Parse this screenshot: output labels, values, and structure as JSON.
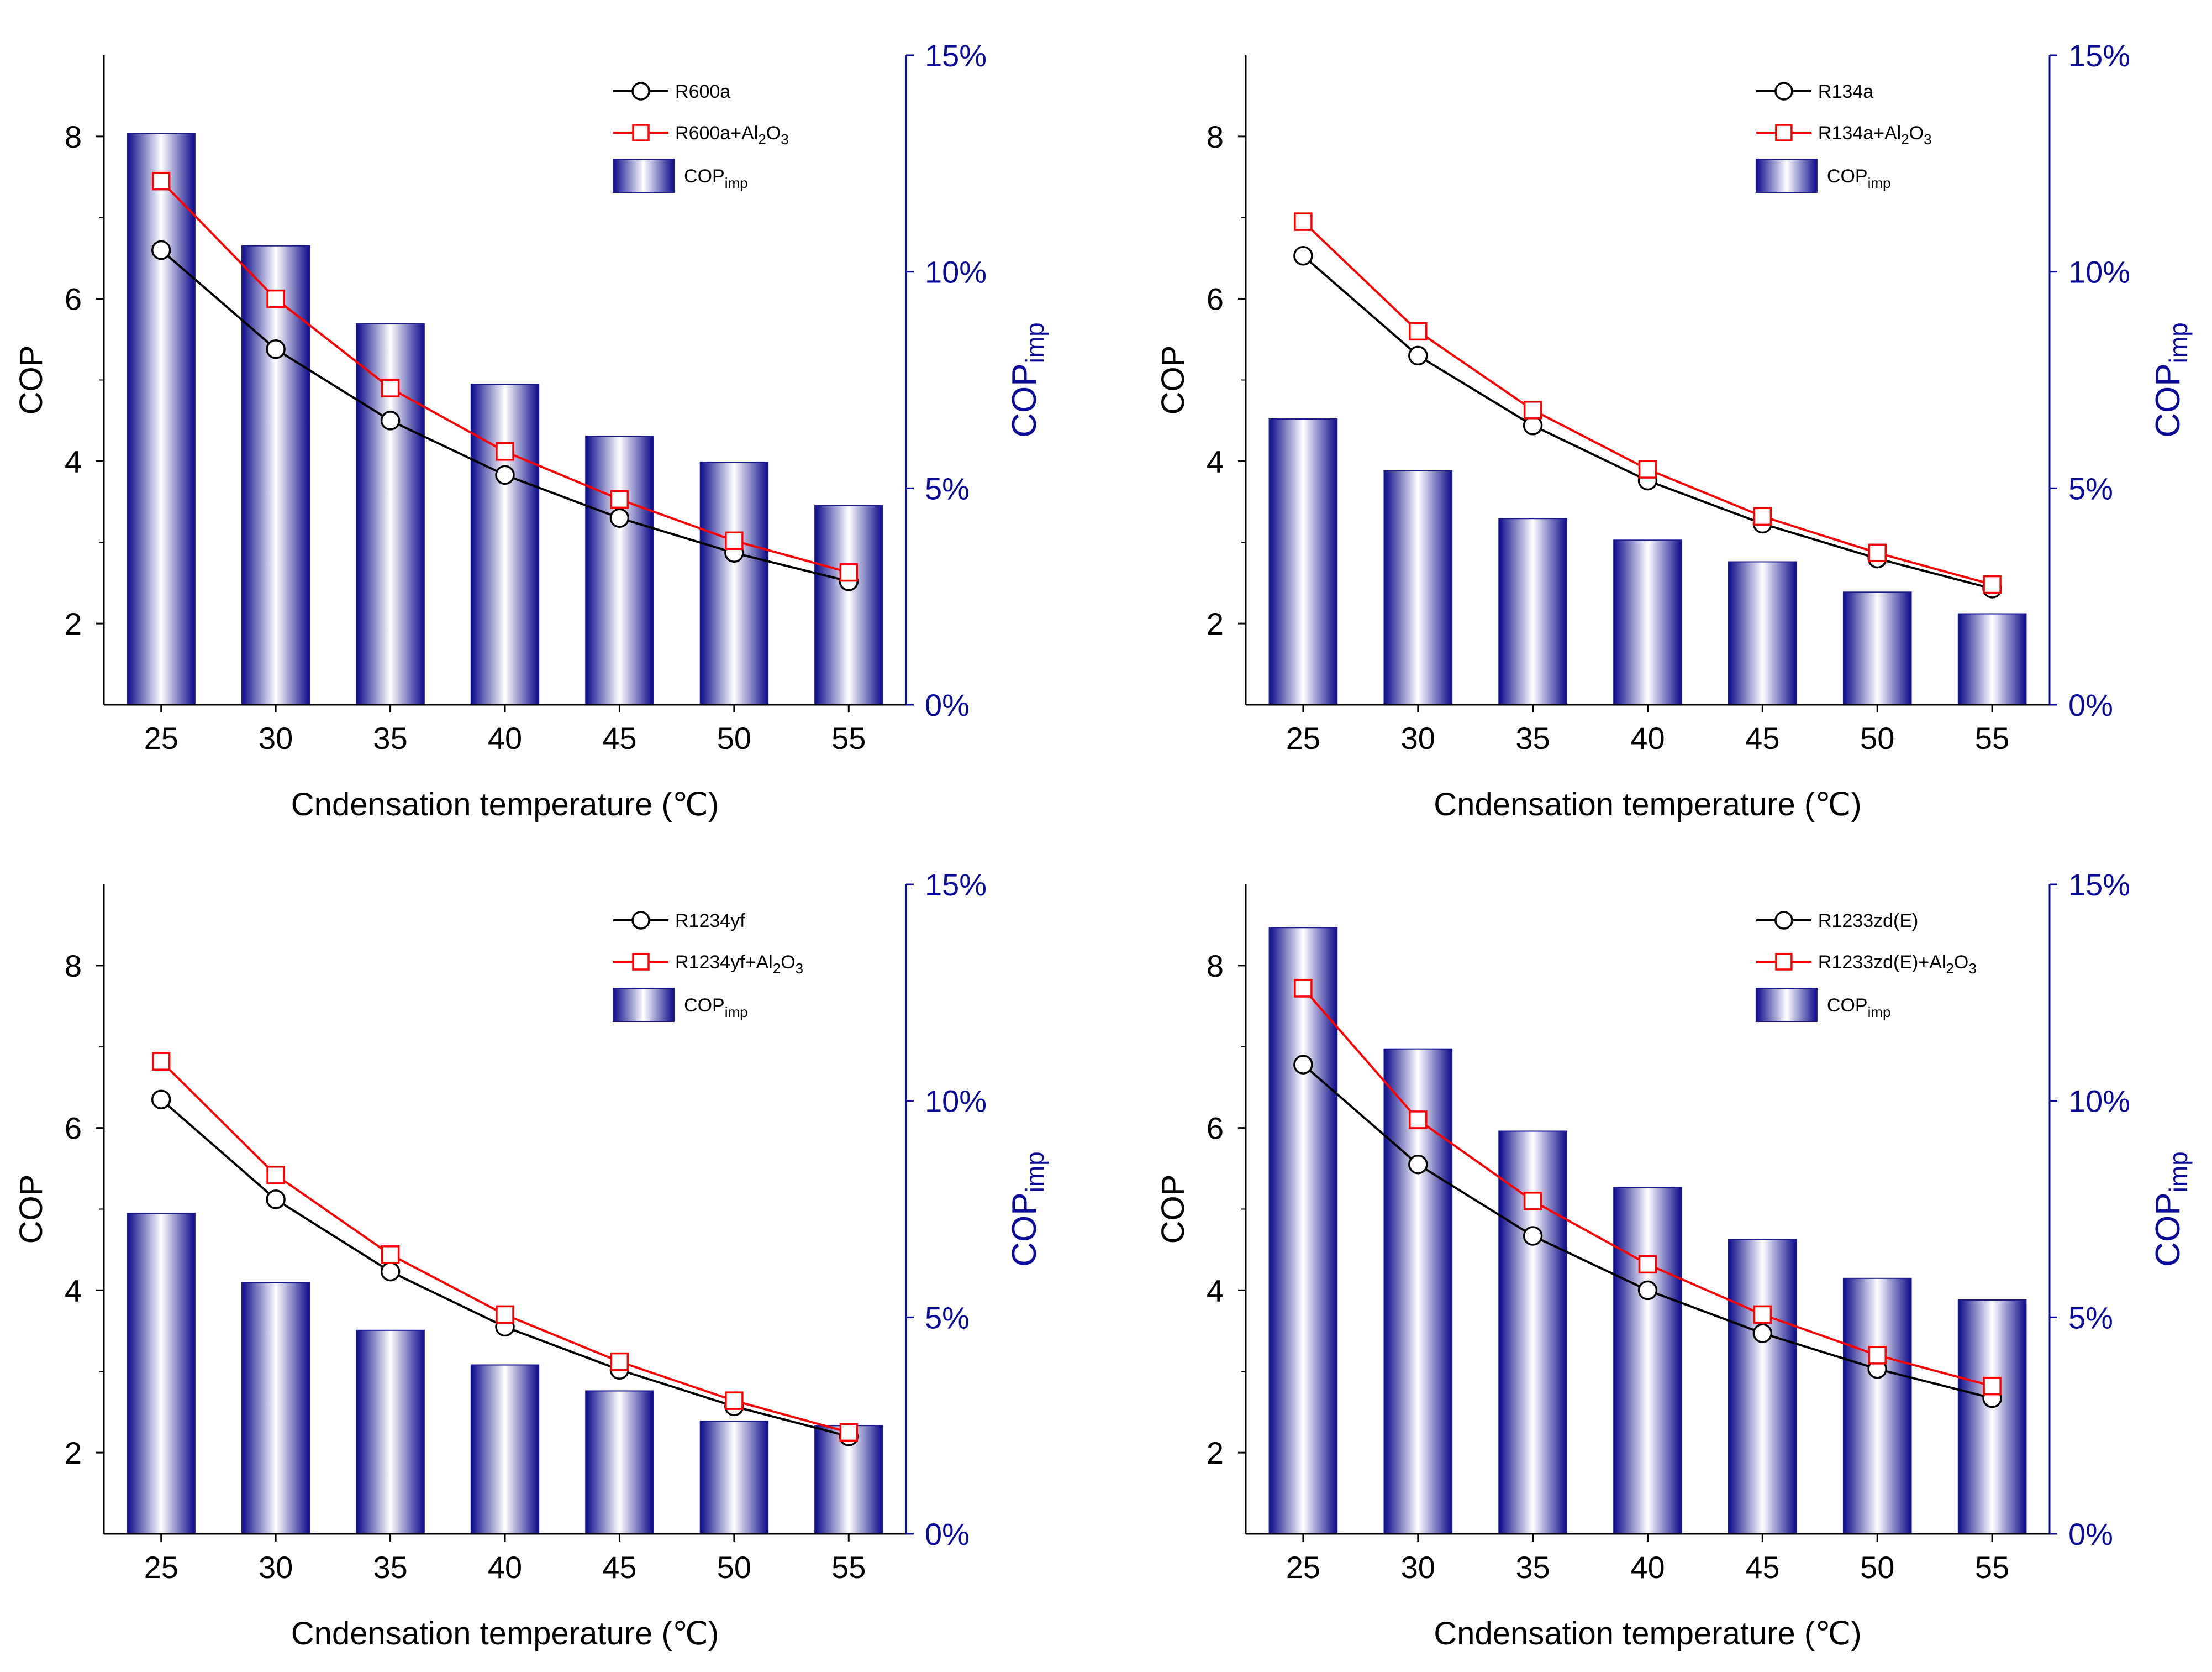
{
  "figure_colors": {
    "base": "#000000",
    "additive": "#ff0000",
    "improvement": "#0b0b9a",
    "bar_edge": "#1a1a8c"
  },
  "chart_data": [
    {
      "type": "bar+line",
      "panel": "top-left",
      "categories": [
        "25",
        "30",
        "35",
        "40",
        "45",
        "50",
        "55"
      ],
      "xlabel": "Cndensation temperature (℃)",
      "ylabel": "COP",
      "ylabel_right": "COP",
      "ylabel_right_sub": "imp",
      "ylim": [
        1,
        9
      ],
      "yticks": [
        "2",
        "4",
        "6",
        "8"
      ],
      "ylim_right": [
        0,
        15
      ],
      "yticks_right": [
        "0%",
        "5%",
        "10%",
        "15%"
      ],
      "legend_position": "top-right",
      "series": [
        {
          "name": "R600a",
          "name_suffix": "",
          "kind": "line",
          "marker": "circle",
          "values": [
            6.6,
            5.38,
            4.5,
            3.83,
            3.3,
            2.87,
            2.52
          ]
        },
        {
          "name": "R600a+Al",
          "name_suffix": "O",
          "kind": "line",
          "marker": "square",
          "values": [
            7.45,
            6.0,
            4.9,
            4.12,
            3.53,
            3.02,
            2.63
          ]
        },
        {
          "name": "COP",
          "name_sub": "imp",
          "kind": "bar",
          "axis": "right",
          "values": [
            13.2,
            10.6,
            8.8,
            7.4,
            6.2,
            5.6,
            4.6
          ]
        }
      ]
    },
    {
      "type": "bar+line",
      "panel": "top-right",
      "categories": [
        "25",
        "30",
        "35",
        "40",
        "45",
        "50",
        "55"
      ],
      "xlabel": "Cndensation temperature (℃)",
      "ylabel": "COP",
      "ylabel_right": "COP",
      "ylabel_right_sub": "imp",
      "ylim": [
        1,
        9
      ],
      "yticks": [
        "2",
        "4",
        "6",
        "8"
      ],
      "ylim_right": [
        0,
        15
      ],
      "yticks_right": [
        "0%",
        "5%",
        "10%",
        "15%"
      ],
      "legend_position": "top-right",
      "series": [
        {
          "name": "R134a",
          "name_suffix": "",
          "kind": "line",
          "marker": "circle",
          "values": [
            6.53,
            5.3,
            4.44,
            3.76,
            3.23,
            2.8,
            2.43
          ]
        },
        {
          "name": "R134a+Al",
          "name_suffix": "O",
          "kind": "line",
          "marker": "square",
          "values": [
            6.95,
            5.6,
            4.63,
            3.9,
            3.32,
            2.87,
            2.48
          ]
        },
        {
          "name": "COP",
          "name_sub": "imp",
          "kind": "bar",
          "axis": "right",
          "values": [
            6.6,
            5.4,
            4.3,
            3.8,
            3.3,
            2.6,
            2.1
          ]
        }
      ]
    },
    {
      "type": "bar+line",
      "panel": "bottom-left",
      "categories": [
        "25",
        "30",
        "35",
        "40",
        "45",
        "50",
        "55"
      ],
      "xlabel": "Cndensation temperature (℃)",
      "ylabel": "COP",
      "ylabel_right": "COP",
      "ylabel_right_sub": "imp",
      "ylim": [
        1,
        9
      ],
      "yticks": [
        "2",
        "4",
        "6",
        "8"
      ],
      "ylim_right": [
        0,
        15
      ],
      "yticks_right": [
        "0%",
        "5%",
        "10%",
        "15%"
      ],
      "legend_position": "top-right",
      "series": [
        {
          "name": "R1234yf",
          "name_suffix": "",
          "kind": "line",
          "marker": "circle",
          "values": [
            6.35,
            5.12,
            4.23,
            3.55,
            3.02,
            2.57,
            2.2
          ]
        },
        {
          "name": "R1234yf+Al",
          "name_suffix": "O",
          "kind": "line",
          "marker": "square",
          "values": [
            6.82,
            5.42,
            4.44,
            3.7,
            3.12,
            2.64,
            2.25
          ]
        },
        {
          "name": "COP",
          "name_sub": "imp",
          "kind": "bar",
          "axis": "right",
          "values": [
            7.4,
            5.8,
            4.7,
            3.9,
            3.3,
            2.6,
            2.5
          ]
        }
      ]
    },
    {
      "type": "bar+line",
      "panel": "bottom-right",
      "categories": [
        "25",
        "30",
        "35",
        "40",
        "45",
        "50",
        "55"
      ],
      "xlabel": "Cndensation temperature (℃)",
      "ylabel": "COP",
      "ylabel_right": "COP",
      "ylabel_right_sub": "imp",
      "ylim": [
        1,
        9
      ],
      "yticks": [
        "2",
        "4",
        "6",
        "8"
      ],
      "ylim_right": [
        0,
        15
      ],
      "yticks_right": [
        "0%",
        "5%",
        "10%",
        "15%"
      ],
      "legend_position": "top-right",
      "series": [
        {
          "name": "R1233zd(E)",
          "name_suffix": "",
          "kind": "line",
          "marker": "circle",
          "values": [
            6.78,
            5.55,
            4.67,
            4.0,
            3.47,
            3.03,
            2.67
          ]
        },
        {
          "name": "R1233zd(E)+Al",
          "name_suffix": "O",
          "kind": "line",
          "marker": "square",
          "values": [
            7.72,
            6.1,
            5.1,
            4.32,
            3.7,
            3.2,
            2.82
          ]
        },
        {
          "name": "COP",
          "name_sub": "imp",
          "kind": "bar",
          "axis": "right",
          "values": [
            14.0,
            11.2,
            9.3,
            8.0,
            6.8,
            5.9,
            5.4
          ]
        }
      ]
    }
  ]
}
